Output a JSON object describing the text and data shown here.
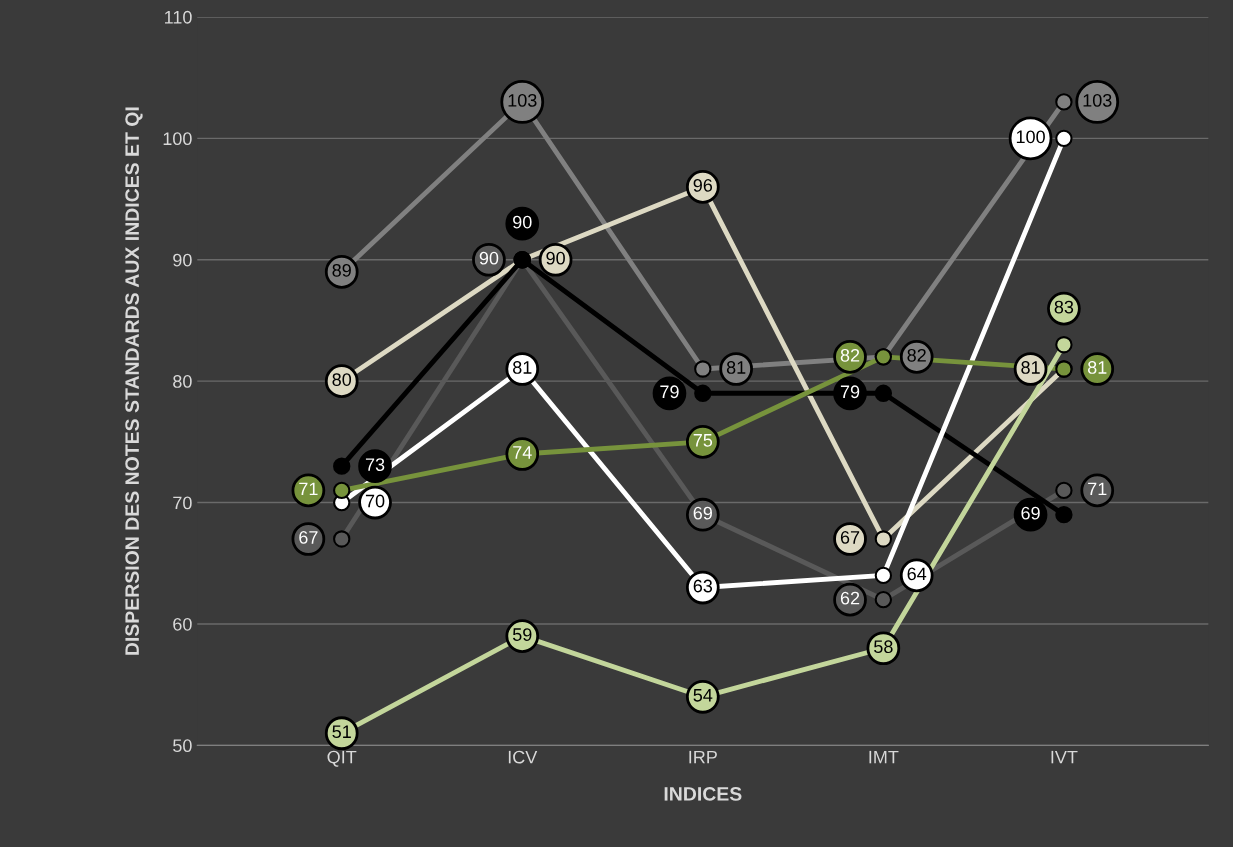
{
  "chart_data": {
    "type": "line",
    "xlabel": "INDICES",
    "ylabel": "DISPERSION DES NOTES STANDARDS AUX INDICES ET QI",
    "categories": [
      "QIT",
      "ICV",
      "IRP",
      "IMT",
      "IVT"
    ],
    "series": [
      {
        "color": "#595959",
        "values": [
          67,
          90,
          69,
          62,
          71
        ]
      },
      {
        "color": "#808080",
        "values": [
          89,
          103,
          81,
          82,
          103
        ]
      },
      {
        "color": "#ddd9c3",
        "values": [
          80,
          90,
          96,
          67,
          81
        ]
      },
      {
        "color": "#000000",
        "values": [
          73,
          90,
          79,
          79,
          69
        ]
      },
      {
        "color": "#ffffff",
        "values": [
          70,
          81,
          63,
          64,
          100
        ]
      },
      {
        "color": "#77933c",
        "values": [
          71,
          74,
          75,
          82,
          81
        ]
      },
      {
        "color": "#c3d69b",
        "values": [
          51,
          59,
          54,
          58,
          83
        ]
      }
    ],
    "ylim": [
      50,
      110
    ],
    "yticks": [
      50,
      60,
      70,
      80,
      90,
      100,
      110
    ],
    "grid": "y",
    "marker": "circle",
    "line_style": "solid",
    "data_labels": true
  }
}
